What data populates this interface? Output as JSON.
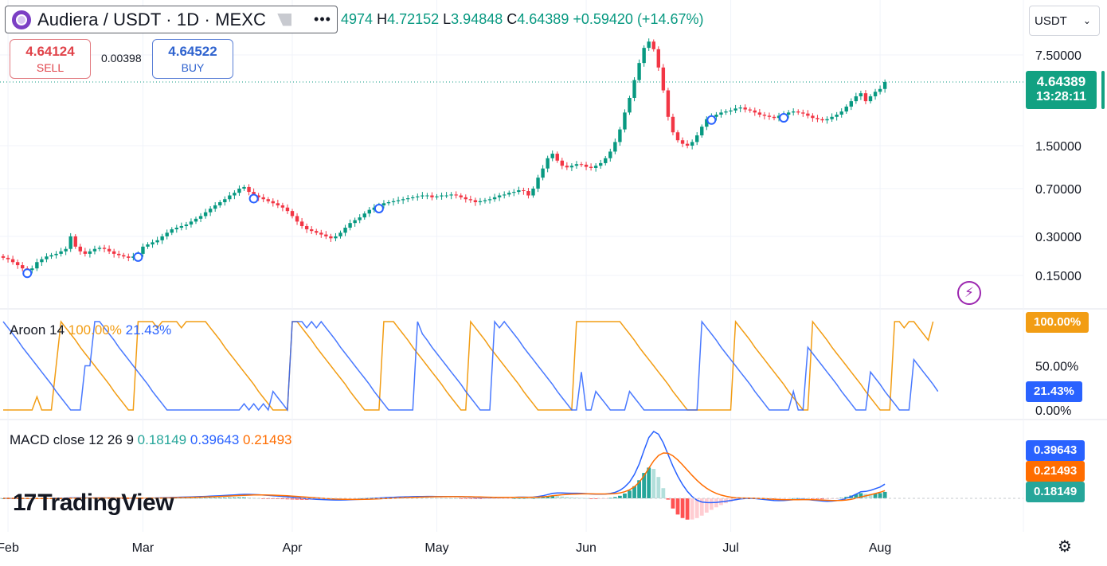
{
  "header": {
    "symbol_title": "Audiera / USDT · 1D · MEXC",
    "logo_icon": "audiera-token-icon",
    "flag_icon": "flag-icon",
    "more_icon": "more-horizontal-icon",
    "more_glyph": "•••"
  },
  "ohlc": {
    "open_label": "",
    "open_value": "4974",
    "high_label": "H",
    "high_value": "4.72152",
    "low_label": "L",
    "low_value": "3.94848",
    "close_label": "C",
    "close_value": "4.64389",
    "change": "+0.59420 (+14.67%)"
  },
  "trade": {
    "sell_price": "4.64124",
    "sell_label": "SELL",
    "buy_price": "4.64522",
    "buy_label": "BUY",
    "spread": "0.00398"
  },
  "currency": {
    "value": "USDT",
    "chevron_icon": "chevron-down-icon"
  },
  "price_badge": {
    "price": "4.64389",
    "countdown": "13:28:11"
  },
  "colors": {
    "up": "#089981",
    "down": "#f23645",
    "aroon_up": "#f29d14",
    "aroon_down": "#2962ff",
    "macd_line": "#2962ff",
    "signal_line": "#ff6d00",
    "hist_up_strong": "#26a69a",
    "hist_up_weak": "#b2dfdb",
    "hist_down_strong": "#ff5252",
    "hist_down_weak": "#ffcdd2",
    "marker": "#2962ff"
  },
  "aroon": {
    "name": "Aroon",
    "args": "14",
    "up_value": "100.00%",
    "down_value": "21.43%",
    "tag_up": "100.00%",
    "tag_down": "21.43%"
  },
  "macd": {
    "name": "MACD",
    "args": "close 12 26 9",
    "hist_value": "0.18149",
    "macd_value": "0.39643",
    "signal_value": "0.21493",
    "tag_macd": "0.39643",
    "tag_signal": "0.21493",
    "tag_hist": "0.18149"
  },
  "logo": {
    "mark": "17",
    "word": "TradingView"
  },
  "icons": {
    "flash": "flash-icon",
    "settings": "settings-icon"
  },
  "chart_data": {
    "type": "candlestick",
    "scale": "log",
    "price_axis_labels": [
      "7.50000",
      "1.50000",
      "0.70000",
      "0.30000",
      "0.15000"
    ],
    "price_axis_values": [
      7.5,
      1.5,
      0.7,
      0.3,
      0.15
    ],
    "aroon_axis_labels": [
      "50.00%",
      "0.00%"
    ],
    "x_tick_labels": [
      "Feb",
      "Mar",
      "Apr",
      "May",
      "Jun",
      "Jul",
      "Aug"
    ],
    "x_tick_days": [
      1,
      29,
      60,
      90,
      121,
      151,
      182
    ],
    "last_price": 4.64389,
    "close_series": [
      0.205,
      0.2,
      0.19,
      0.18,
      0.17,
      0.165,
      0.17,
      0.19,
      0.2,
      0.21,
      0.215,
      0.22,
      0.23,
      0.24,
      0.3,
      0.25,
      0.23,
      0.22,
      0.23,
      0.24,
      0.245,
      0.24,
      0.23,
      0.22,
      0.215,
      0.21,
      0.205,
      0.21,
      0.22,
      0.25,
      0.26,
      0.27,
      0.28,
      0.3,
      0.32,
      0.34,
      0.35,
      0.36,
      0.37,
      0.39,
      0.41,
      0.43,
      0.46,
      0.49,
      0.52,
      0.55,
      0.58,
      0.62,
      0.65,
      0.7,
      0.72,
      0.66,
      0.62,
      0.6,
      0.58,
      0.56,
      0.54,
      0.52,
      0.5,
      0.47,
      0.43,
      0.39,
      0.36,
      0.34,
      0.33,
      0.32,
      0.31,
      0.3,
      0.29,
      0.3,
      0.32,
      0.35,
      0.38,
      0.4,
      0.42,
      0.45,
      0.48,
      0.5,
      0.52,
      0.54,
      0.55,
      0.56,
      0.57,
      0.58,
      0.59,
      0.6,
      0.61,
      0.62,
      0.62,
      0.6,
      0.61,
      0.62,
      0.62,
      0.63,
      0.62,
      0.6,
      0.58,
      0.57,
      0.55,
      0.56,
      0.57,
      0.58,
      0.6,
      0.62,
      0.63,
      0.65,
      0.66,
      0.68,
      0.67,
      0.62,
      0.7,
      0.85,
      1.0,
      1.2,
      1.3,
      1.15,
      1.05,
      1.02,
      1.05,
      1.08,
      1.07,
      1.03,
      1.01,
      1.05,
      1.1,
      1.2,
      1.35,
      1.6,
      2.0,
      2.7,
      3.5,
      4.8,
      6.5,
      8.5,
      9.5,
      8.3,
      6.0,
      4.0,
      2.5,
      1.9,
      1.65,
      1.55,
      1.5,
      1.6,
      1.8,
      2.1,
      2.4,
      2.5,
      2.6,
      2.7,
      2.75,
      2.8,
      2.9,
      2.95,
      2.85,
      2.8,
      2.7,
      2.6,
      2.55,
      2.5,
      2.45,
      2.55,
      2.6,
      2.7,
      2.75,
      2.7,
      2.65,
      2.55,
      2.45,
      2.4,
      2.35,
      2.4,
      2.5,
      2.6,
      2.75,
      3.0,
      3.3,
      3.6,
      3.8,
      3.3,
      3.6,
      3.9,
      4.1,
      4.64
    ],
    "markers_day": [
      5,
      28,
      52,
      78,
      162,
      147
    ],
    "aroon_up_series": [
      0,
      0,
      0,
      0,
      0,
      0,
      0,
      15,
      0,
      0,
      0,
      50,
      100,
      93,
      86,
      79,
      71,
      64,
      57,
      50,
      43,
      36,
      29,
      21,
      14,
      7,
      0,
      0,
      100,
      100,
      100,
      100,
      93,
      100,
      100,
      100,
      100,
      93,
      100,
      100,
      100,
      100,
      100,
      93,
      86,
      79,
      71,
      64,
      57,
      50,
      43,
      36,
      29,
      21,
      14,
      7,
      0,
      0,
      0,
      0,
      100,
      100,
      93,
      86,
      79,
      71,
      64,
      57,
      50,
      43,
      36,
      29,
      21,
      14,
      7,
      0,
      0,
      0,
      0,
      100,
      100,
      100,
      93,
      86,
      79,
      71,
      64,
      57,
      50,
      43,
      36,
      29,
      21,
      14,
      7,
      0,
      0,
      100,
      93,
      86,
      79,
      71,
      64,
      57,
      50,
      43,
      36,
      29,
      21,
      14,
      7,
      0,
      0,
      0,
      0,
      0,
      0,
      0,
      0,
      100,
      100,
      100,
      100,
      100,
      100,
      100,
      100,
      100,
      100,
      93,
      86,
      79,
      71,
      64,
      57,
      50,
      43,
      36,
      29,
      21,
      14,
      7,
      0,
      0,
      0,
      0,
      0,
      0,
      0,
      0,
      0,
      0,
      100,
      93,
      86,
      79,
      71,
      64,
      57,
      50,
      43,
      36,
      29,
      21,
      14,
      7,
      0,
      0,
      100,
      93,
      86,
      79,
      71,
      64,
      57,
      50,
      43,
      36,
      29,
      21,
      14,
      7,
      0,
      0,
      0,
      100,
      100,
      93,
      100,
      100,
      93,
      86,
      79,
      100
    ],
    "aroon_down_series": [
      100,
      93,
      86,
      79,
      71,
      64,
      57,
      50,
      43,
      36,
      29,
      21,
      14,
      7,
      0,
      0,
      0,
      50,
      50,
      100,
      100,
      93,
      86,
      79,
      71,
      64,
      57,
      50,
      43,
      36,
      29,
      21,
      14,
      7,
      0,
      0,
      0,
      0,
      0,
      0,
      0,
      0,
      0,
      0,
      0,
      0,
      0,
      0,
      0,
      0,
      7,
      0,
      7,
      0,
      7,
      0,
      21,
      14,
      7,
      0,
      100,
      100,
      100,
      93,
      100,
      93,
      100,
      93,
      86,
      79,
      71,
      64,
      57,
      50,
      43,
      36,
      29,
      21,
      14,
      7,
      0,
      0,
      0,
      0,
      0,
      0,
      100,
      86,
      79,
      71,
      64,
      57,
      50,
      43,
      36,
      29,
      21,
      14,
      7,
      0,
      0,
      0,
      100,
      93,
      100,
      93,
      86,
      79,
      71,
      64,
      57,
      50,
      43,
      36,
      29,
      21,
      14,
      7,
      0,
      0,
      43,
      0,
      0,
      21,
      14,
      7,
      0,
      0,
      0,
      0,
      21,
      14,
      7,
      0,
      0,
      0,
      0,
      0,
      0,
      0,
      0,
      0,
      0,
      0,
      0,
      100,
      93,
      86,
      79,
      71,
      64,
      57,
      50,
      43,
      36,
      29,
      21,
      14,
      7,
      0,
      0,
      0,
      0,
      0,
      21,
      0,
      0,
      71,
      64,
      57,
      50,
      43,
      36,
      29,
      21,
      14,
      7,
      0,
      0,
      0,
      43,
      36,
      29,
      21,
      14,
      7,
      0,
      0,
      0,
      57,
      50,
      43,
      36,
      29,
      21
    ],
    "macd_series_note": "oscillates near zero; peaks about day 133",
    "macd_peak_day": 133,
    "macd_last": 0.39643,
    "signal_last": 0.21493,
    "hist_last": 0.18149
  }
}
